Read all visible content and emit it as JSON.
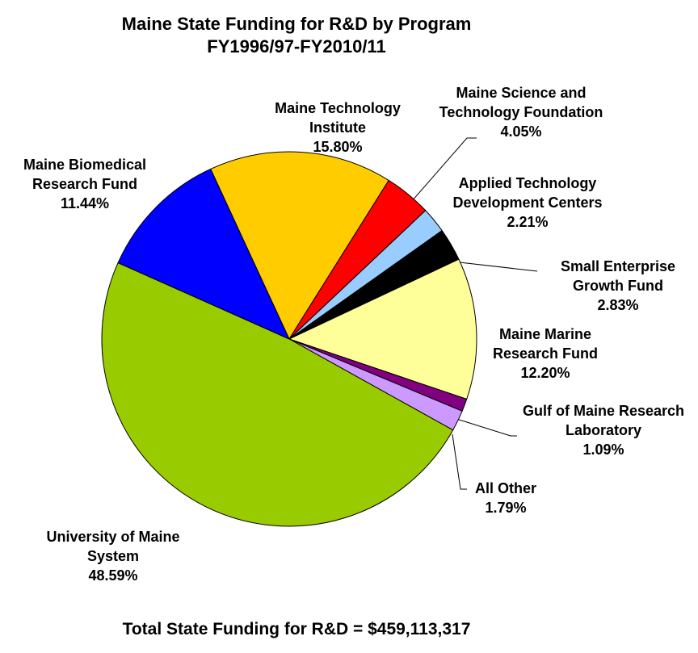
{
  "chart_data": {
    "type": "pie",
    "title": "Maine State Funding for R&D by Program",
    "subtitle": "FY1996/97-FY2010/11",
    "annotation": "Total State Funding for R&D = $459,113,317",
    "categories": [
      "Maine Technology Institute",
      "Maine Science and Technology Foundation",
      "Applied Technology Development Centers",
      "Small Enterprise Growth Fund",
      "Maine Marine Research Fund",
      "Gulf of Maine Research Laboratory",
      "All Other",
      "University of Maine System",
      "Maine Biomedical Research Fund"
    ],
    "values": [
      15.8,
      4.05,
      2.21,
      2.83,
      12.2,
      1.09,
      1.79,
      48.59,
      11.44
    ],
    "value_labels": [
      "15.80%",
      "4.05%",
      "2.21%",
      "2.83%",
      "12.20%",
      "1.09%",
      "1.79%",
      "48.59%",
      "11.44%"
    ],
    "colors": [
      "#ffcc00",
      "#ff0000",
      "#99ccff",
      "#000000",
      "#ffff99",
      "#800080",
      "#cc99ff",
      "#99cc00",
      "#0000ff"
    ]
  }
}
